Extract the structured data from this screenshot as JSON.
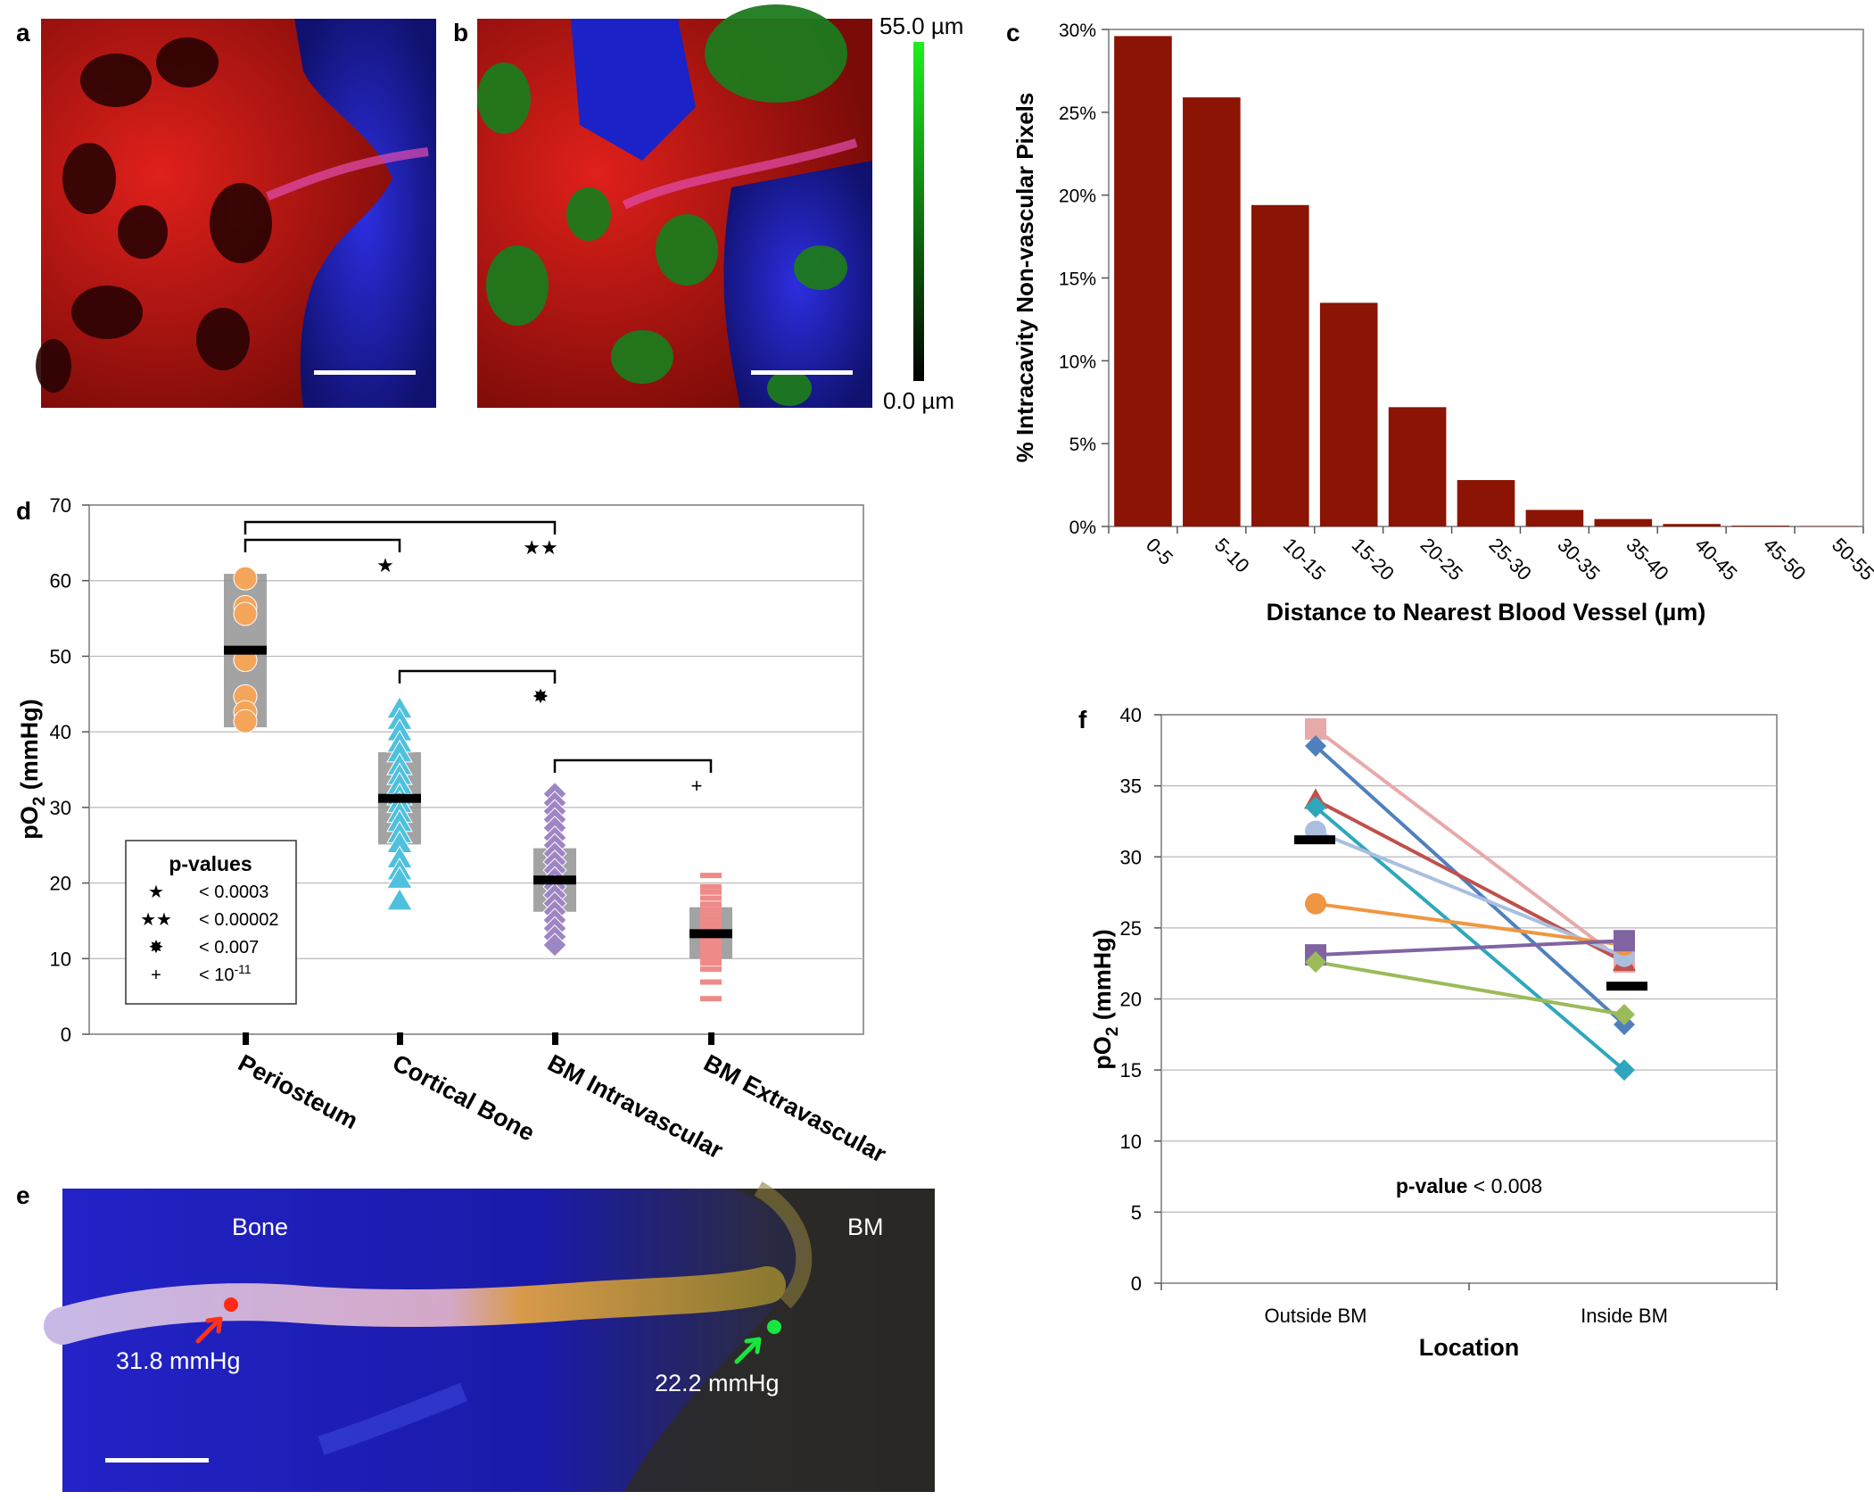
{
  "panels": {
    "a": {
      "letter": "a"
    },
    "b": {
      "letter": "b",
      "colorbar_top": "55.0 µm",
      "colorbar_bottom": "0.0 µm"
    },
    "e": {
      "letter": "e",
      "label_bone": "Bone",
      "label_bm": "BM",
      "reading_red": "31.8 mmHg",
      "reading_green": "22.2 mmHg"
    }
  },
  "colors": {
    "bar_fill": "#8b1404",
    "periosteum": "#f5a55a",
    "cortical": "#4fc0dd",
    "bm_intra": "#9d86c4",
    "bm_extra": "#ee8a88",
    "sd_box": "#8c8c8c",
    "mean_bar": "#000000",
    "gridline": "#b8b8b8"
  },
  "chart_data": [
    {
      "panel": "c",
      "type": "bar",
      "categories": [
        "0-5",
        "5-10",
        "10-15",
        "15-20",
        "20-25",
        "25-30",
        "30-35",
        "35-40",
        "40-45",
        "45-50",
        "50-55"
      ],
      "values": [
        29.6,
        25.9,
        19.4,
        13.5,
        7.2,
        2.8,
        1.0,
        0.45,
        0.15,
        0.05,
        0.02
      ],
      "xlabel": "Distance to Nearest Blood Vessel (µm)",
      "ylabel": "% Intracavity Non-vascular Pixels",
      "ylim": [
        0,
        30
      ],
      "yticks": [
        "0%",
        "5%",
        "10%",
        "15%",
        "20%",
        "25%",
        "30%"
      ],
      "grid": false
    },
    {
      "panel": "d",
      "type": "scatter",
      "categories": [
        "Periosteum",
        "Cortical Bone",
        "BM Intravascular",
        "BM Extravascular"
      ],
      "ylabel_main": "pO",
      "ylabel_sub": "2",
      "ylabel_unit": " (mmHg)",
      "ylim": [
        0,
        70
      ],
      "yticks": [
        "0",
        "10",
        "20",
        "30",
        "40",
        "50",
        "60",
        "70"
      ],
      "grid": true,
      "series": [
        {
          "category": "Periosteum",
          "marker": "circle",
          "mean": 50.8,
          "sd_low": 40.6,
          "sd_high": 60.9,
          "points": [
            60.3,
            56.5,
            55.6,
            49.5,
            44.7,
            42.6,
            41.4
          ]
        },
        {
          "category": "Cortical Bone",
          "marker": "triangle",
          "mean": 31.2,
          "sd_low": 25.1,
          "sd_high": 37.3,
          "points": [
            43.0,
            41.5,
            40.0,
            38.5,
            37.2,
            35.5,
            34.2,
            33.0,
            31.5,
            30.5,
            29.2,
            28.0,
            26.5,
            25.2,
            23.2,
            21.6,
            20.5,
            17.6
          ]
        },
        {
          "category": "BM Intravascular",
          "marker": "diamond",
          "mean": 20.4,
          "sd_low": 16.2,
          "sd_high": 24.6,
          "points": [
            31.8,
            30.6,
            29.5,
            28.4,
            27.3,
            26.0,
            25.0,
            23.9,
            22.8,
            21.7,
            20.6,
            19.5,
            18.4,
            17.3,
            16.2,
            15.1,
            14.0,
            12.9,
            11.8
          ]
        },
        {
          "category": "BM Extravascular",
          "marker": "dash",
          "mean": 13.3,
          "sd_low": 10.0,
          "sd_high": 16.8,
          "points": [
            21.0,
            19.5,
            18.8,
            18.0,
            17.2,
            16.5,
            15.8,
            15.0,
            14.3,
            13.6,
            13.0,
            12.4,
            11.8,
            11.2,
            10.6,
            10.0,
            9.4,
            8.6,
            6.9,
            4.7
          ]
        }
      ],
      "significance": [
        {
          "from": 0,
          "to": 1,
          "level": 1,
          "symbol": "★"
        },
        {
          "from": 0,
          "to": 2,
          "level": 2,
          "symbol": "★★"
        },
        {
          "from": 1,
          "to": 2,
          "level": 1,
          "symbol": "✸"
        },
        {
          "from": 2,
          "to": 3,
          "level": 1,
          "symbol": "+"
        }
      ],
      "legend": {
        "title": "p-values",
        "entries": [
          {
            "symbol": "★",
            "text": "< 0.0003"
          },
          {
            "symbol": "★★",
            "text": "< 0.00002"
          },
          {
            "symbol": "✸",
            "text": "< 0.007"
          },
          {
            "symbol": "+",
            "text": "< 10",
            "sup": "-11"
          }
        ]
      }
    },
    {
      "panel": "f",
      "type": "line",
      "categories": [
        "Outside BM",
        "Inside BM"
      ],
      "xlabel": "Location",
      "ylabel_main": "pO",
      "ylabel_sub": "2",
      "ylabel_unit": " (mmHg)",
      "ylim": [
        0,
        40
      ],
      "yticks": [
        "0",
        "5",
        "10",
        "15",
        "20",
        "25",
        "30",
        "35",
        "40"
      ],
      "grid": true,
      "annotation_bold": "p-value",
      "annotation_rest": " < 0.008",
      "series": [
        {
          "values": [
            39.0,
            22.6
          ],
          "color": "#e8a9a9",
          "marker": "square"
        },
        {
          "values": [
            37.8,
            18.2
          ],
          "color": "#4f80bd",
          "marker": "diamond"
        },
        {
          "values": [
            34.0,
            22.6
          ],
          "color": "#c0504d",
          "marker": "triangle"
        },
        {
          "values": [
            33.5,
            15.0
          ],
          "color": "#2ea7bd",
          "marker": "diamond"
        },
        {
          "values": [
            31.8,
            23.0
          ],
          "color": "#aabfe0",
          "marker": "circle"
        },
        {
          "values": [
            26.7,
            23.8
          ],
          "color": "#f09643",
          "marker": "circle"
        },
        {
          "values": [
            23.1,
            24.1
          ],
          "color": "#8064a2",
          "marker": "square"
        },
        {
          "values": [
            22.6,
            18.9
          ],
          "color": "#9bbb59",
          "marker": "diamond"
        }
      ],
      "means": [
        31.2,
        20.9
      ]
    }
  ]
}
